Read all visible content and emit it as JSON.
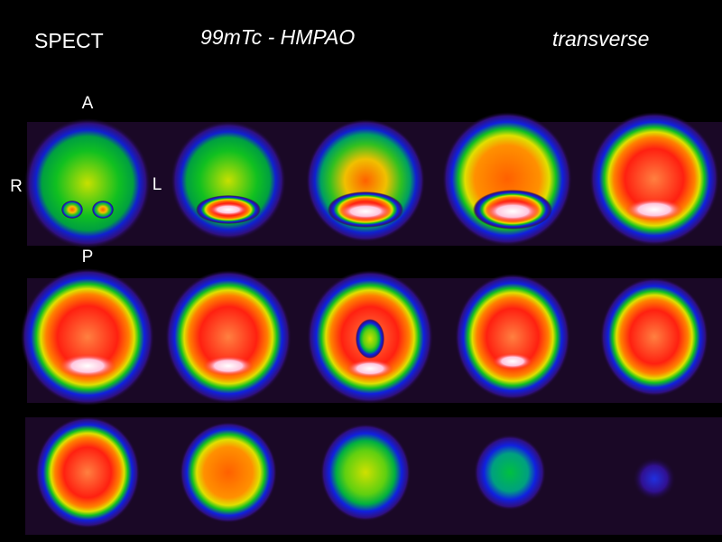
{
  "header": {
    "modality": "SPECT",
    "tracer": "99mTc - HMPAO",
    "plane": "transverse"
  },
  "orientation": {
    "anterior": "A",
    "right": "R",
    "left": "L",
    "posterior": "P"
  }
}
